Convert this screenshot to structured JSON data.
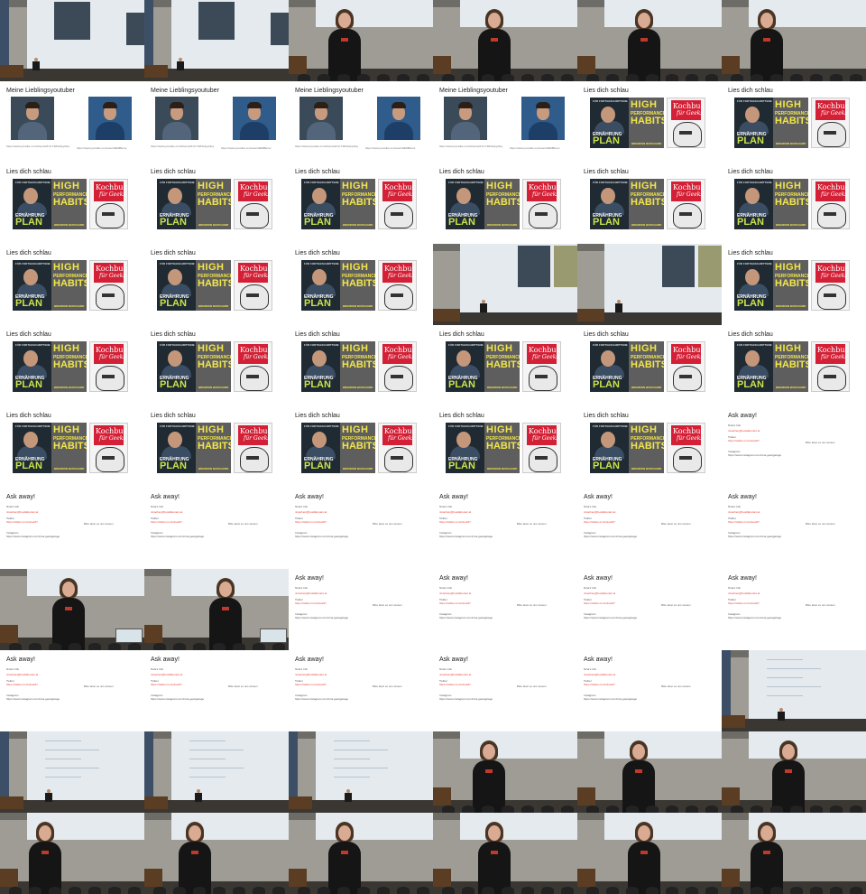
{
  "slides": {
    "youtubers": {
      "title": "Meine Lieblingsyoutuber",
      "link_left": "https://www.youtube.com/channel/UC-T9Z4c2pyGkqp5hvcVkS8w",
      "link_right": "https://www.youtube.com/user/HEMBeros"
    },
    "books": {
      "title": "Lies dich schlau",
      "book1": {
        "top": "FÜR FORTGESCHRITTENE",
        "word1": "ERNÄHRUNG",
        "word2": "PLAN"
      },
      "book2": {
        "word1": "HIGH",
        "word2": "PERFORMANCE",
        "word3": "HABITS",
        "author": "BRENDON BURCHARD"
      },
      "book3": {
        "word1": "Kochbuch",
        "word2": "für Geeks"
      }
    },
    "questions": {
      "title": "Ask away!",
      "label1": "Nina's Info",
      "link1": "ninachen@foodlaborant.at",
      "label2": "Twitter",
      "link2": "https://twitter.com/nina247",
      "note": "Bitte lasst es uns wissen",
      "label3": "Instagram",
      "link3": "https://www.instagram.com/nina.geekgarage"
    }
  },
  "grid": {
    "columns": 6,
    "rows": 11,
    "cells": [
      "cam-slide",
      "cam-slide",
      "cam-speaker",
      "cam-speaker",
      "cam-speaker",
      "cam-speaker",
      "youtubers",
      "youtubers",
      "youtubers",
      "youtubers",
      "books",
      "books",
      "books",
      "books",
      "books",
      "books",
      "books",
      "books",
      "books",
      "books",
      "books",
      "cam-books",
      "cam-books",
      "books",
      "books",
      "books",
      "books",
      "books",
      "books",
      "books",
      "books",
      "books",
      "books",
      "books",
      "books",
      "questions",
      "questions",
      "questions",
      "questions",
      "questions",
      "questions",
      "questions",
      "cam-speaker-close",
      "cam-speaker-close",
      "questions",
      "questions",
      "questions",
      "questions",
      "questions",
      "questions",
      "questions",
      "questions",
      "questions",
      "cam-wide",
      "cam-wide",
      "cam-wide",
      "cam-wide",
      "cam-speaker",
      "cam-speaker",
      "cam-speaker",
      "cam-speaker",
      "cam-speaker",
      "cam-speaker",
      "cam-speaker",
      "cam-speaker",
      "cam-speaker"
    ]
  },
  "colors": {
    "link_red": "#e8423b",
    "habits_yellow": "#f2e64b",
    "plan_green": "#c9e34b",
    "kochbuch_red": "#d42036"
  }
}
